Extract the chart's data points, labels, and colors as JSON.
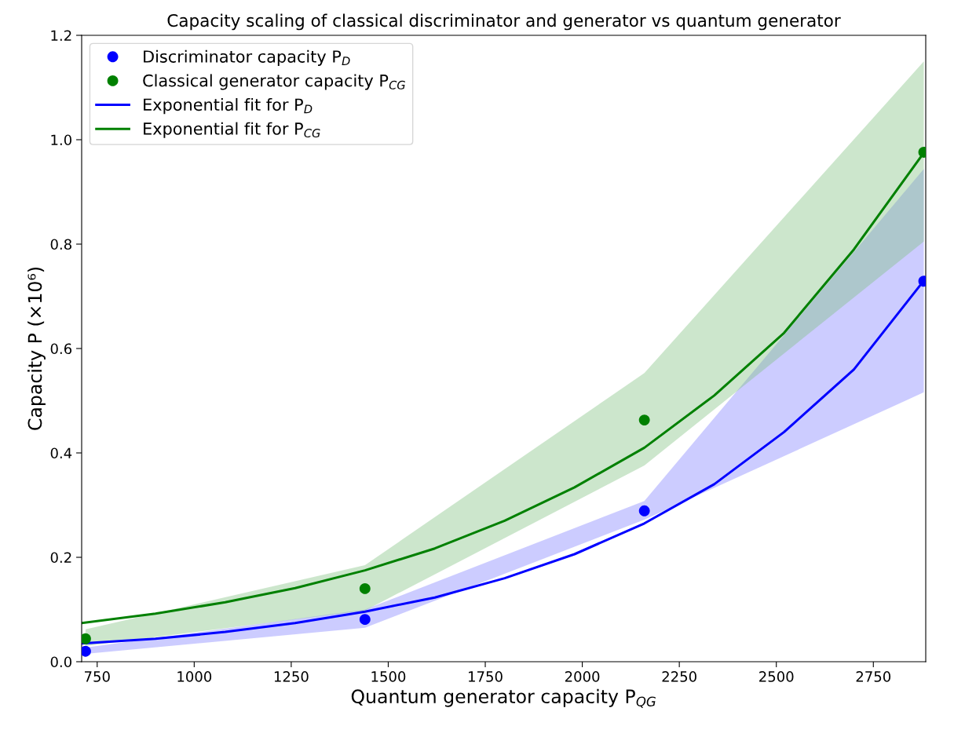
{
  "chart_data": {
    "type": "scatter",
    "title": "Capacity scaling of classical discriminator and generator vs quantum generator",
    "xlabel": "Quantum generator capacity P$_{QG}$",
    "ylabel": "Capacity P (×10⁶)",
    "xlim": [
      710,
      2885
    ],
    "xticks": [
      750,
      1000,
      1250,
      1500,
      1750,
      2000,
      2250,
      2500,
      2750
    ],
    "ylim": [
      0,
      1.2
    ],
    "yticks": [
      {
        "value": 0,
        "label": "0.0"
      },
      0.2,
      0.4,
      0.6,
      0.8,
      {
        "value": 1,
        "label": "1.0"
      },
      1.2
    ],
    "grid": false,
    "legend": "top left",
    "series": [
      {
        "type": "line",
        "marker": "none",
        "color": "#0000ff",
        "x": [
          720,
          1440,
          2160,
          2880
        ],
        "values": [
          null,
          null,
          null,
          null
        ],
        "lower": [
          0.015,
          0.065,
          0.272,
          0.516
        ],
        "upper": [
          0.027,
          0.1,
          0.308,
          0.944
        ]
      },
      {
        "type": "line",
        "marker": "none",
        "color": "#008000",
        "x": [
          720,
          1440,
          2160,
          2880
        ],
        "values": [
          null,
          null,
          null,
          null
        ],
        "lower": [
          0.03,
          0.098,
          0.376,
          0.805
        ],
        "upper": [
          0.062,
          0.185,
          0.553,
          1.15
        ]
      },
      {
        "name": "Discriminator capacity P$_{D}$",
        "marker": "circle",
        "color": "#0000ff",
        "x": [
          720,
          1440,
          2160,
          2880
        ],
        "values": [
          0.02,
          0.081,
          0.289,
          0.729
        ]
      },
      {
        "name": "Classical generator capacity P$_{CG}$",
        "marker": "circle",
        "color": "#008000",
        "x": [
          720,
          1440,
          2160,
          2880
        ],
        "values": [
          0.044,
          0.14,
          0.463,
          0.976
        ]
      },
      {
        "name": "Exponential fit for P$_{D}$",
        "type": "line",
        "marker": "none",
        "color": "#0000ff",
        "x": [
          710,
          900,
          1080,
          1260,
          1440,
          1620,
          1800,
          1980,
          2160,
          2340,
          2520,
          2700,
          2880
        ],
        "values": [
          0.035,
          0.044,
          0.057,
          0.074,
          0.096,
          0.123,
          0.16,
          0.206,
          0.265,
          0.34,
          0.44,
          0.56,
          0.73
        ]
      },
      {
        "name": "Exponential fit for P$_{CG}$",
        "type": "line",
        "marker": "none",
        "color": "#008000",
        "x": [
          710,
          900,
          1080,
          1260,
          1440,
          1620,
          1800,
          1980,
          2160,
          2340,
          2520,
          2700,
          2880
        ],
        "values": [
          0.074,
          0.092,
          0.114,
          0.141,
          0.175,
          0.217,
          0.27,
          0.334,
          0.41,
          0.51,
          0.63,
          0.79,
          0.975
        ]
      }
    ]
  }
}
